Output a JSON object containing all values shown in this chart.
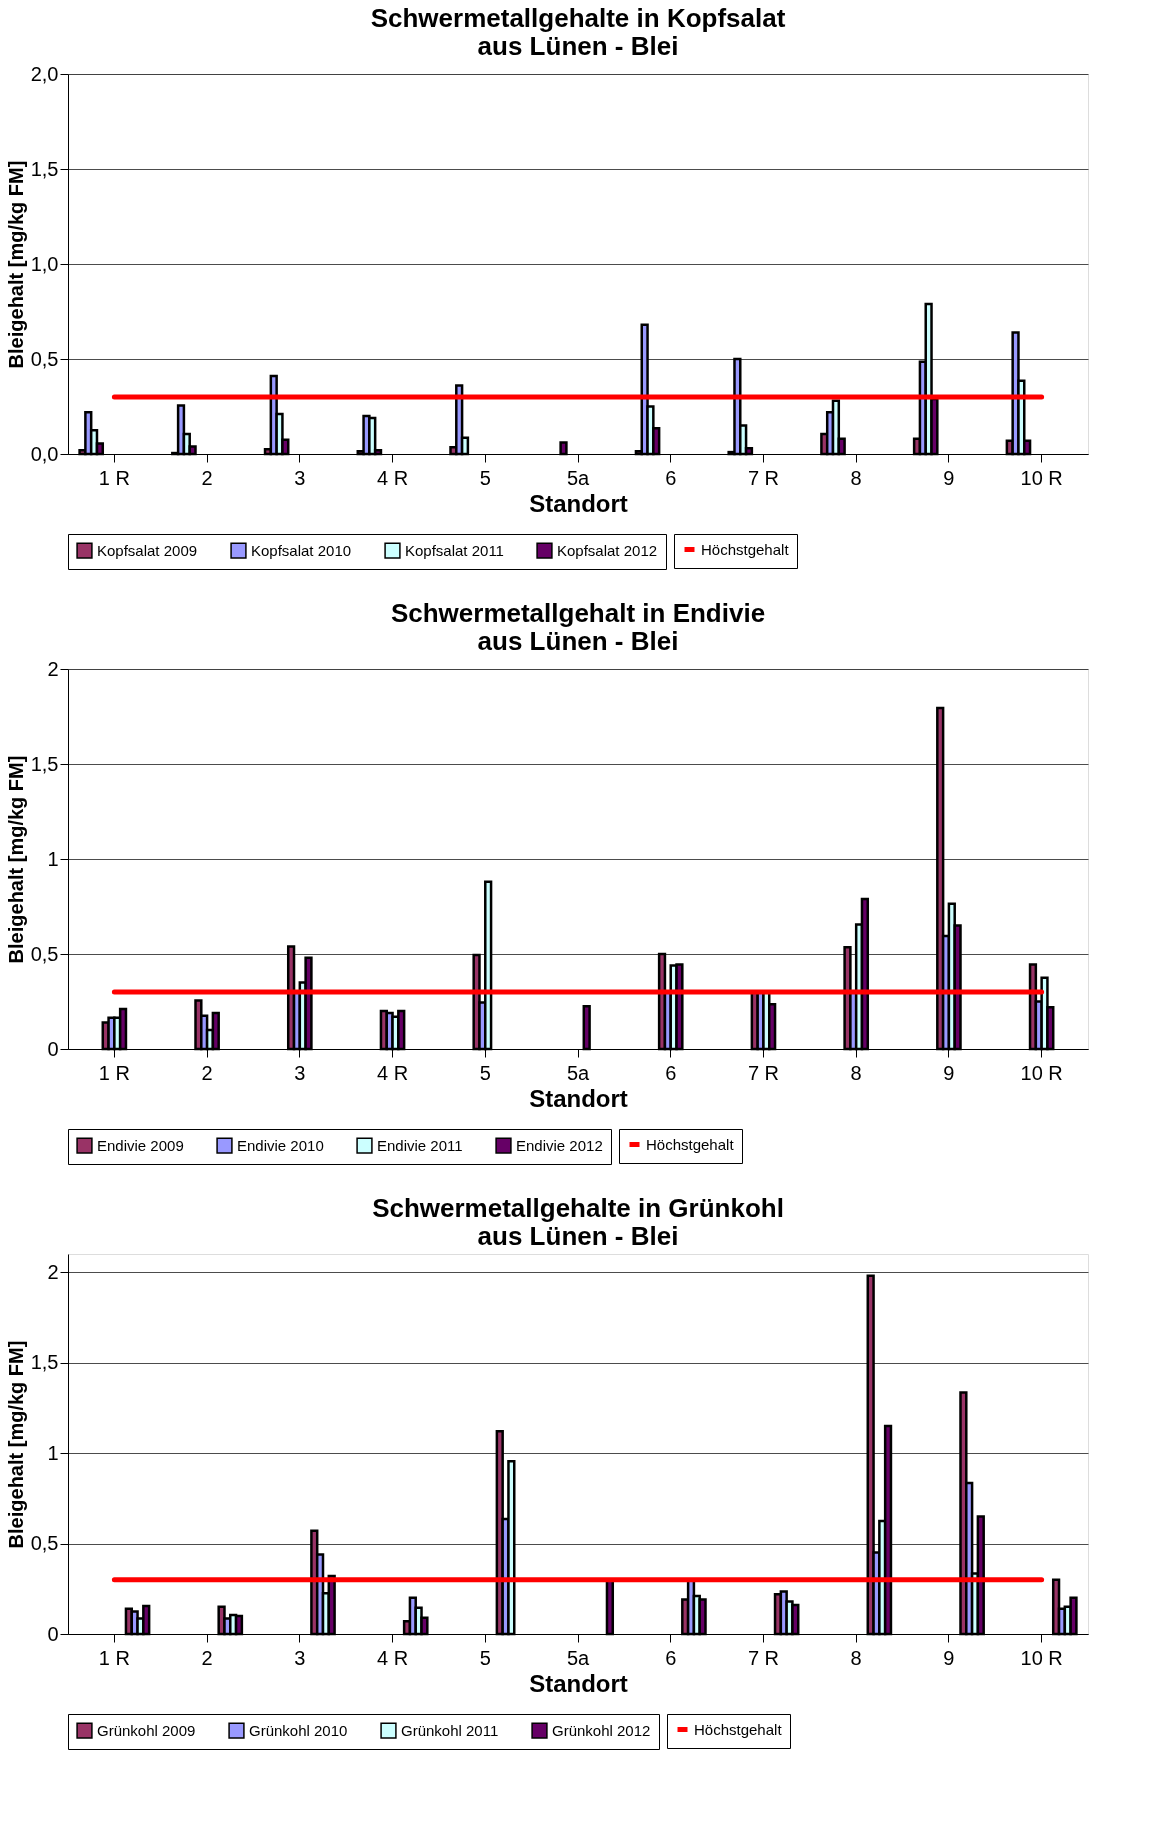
{
  "chart_data": [
    {
      "type": "bar",
      "title": [
        "Schwermetallgehalte in Kopfsalat",
        "aus Lünen - Blei"
      ],
      "xlabel": "Standort",
      "ylabel": "Bleigehalt [mg/kg FM]",
      "categories": [
        "1 R",
        "2",
        "3",
        "4 R",
        "5",
        "5a",
        "6",
        "7 R",
        "8",
        "9",
        "10 R"
      ],
      "series": [
        {
          "name": "Kopfsalat 2009",
          "color": "#993366",
          "values": [
            0.02,
            0.005,
            0.025,
            0.015,
            0.035,
            null,
            0.015,
            0.01,
            0.105,
            0.08,
            0.07
          ]
        },
        {
          "name": "Kopfsalat 2010",
          "color": "#9999ff",
          "values": [
            0.22,
            0.255,
            0.41,
            0.2,
            0.36,
            null,
            0.68,
            0.5,
            0.22,
            0.485,
            0.64
          ]
        },
        {
          "name": "Kopfsalat 2011",
          "color": "#ccffff",
          "values": [
            0.125,
            0.105,
            0.21,
            0.19,
            0.085,
            null,
            0.25,
            0.15,
            0.28,
            0.79,
            0.385
          ]
        },
        {
          "name": "Kopfsalat 2012",
          "color": "#660066",
          "values": [
            0.055,
            0.04,
            0.075,
            0.02,
            null,
            0.06,
            0.135,
            0.03,
            0.08,
            0.29,
            0.07
          ]
        }
      ],
      "ref_lines": [
        {
          "axis": "y",
          "value": 0.3,
          "label": "Höchstgehalt",
          "color": "#ff0000"
        }
      ],
      "ylim": [
        0,
        2
      ],
      "yticks": [
        {
          "value": 0,
          "label": "0,0"
        },
        {
          "value": 0.5,
          "label": "0,5"
        },
        {
          "value": 1,
          "label": "1,0"
        },
        {
          "value": 1.5,
          "label": "1,5"
        },
        {
          "value": 2,
          "label": "2,0"
        }
      ],
      "grid": "y",
      "legend": "bottom"
    },
    {
      "type": "bar",
      "title": [
        "Schwermetallgehalt  in Endivie",
        "aus Lünen - Blei"
      ],
      "xlabel": "Standort",
      "ylabel": "Bleigehalt [mg/kg FM]",
      "categories": [
        "1 R",
        "2",
        "3",
        "4 R",
        "5",
        "5a",
        "6",
        "7 R",
        "8",
        "9",
        "10 R"
      ],
      "series": [
        {
          "name": "Endivie 2009",
          "color": "#993366",
          "values": [
            0.14,
            0.255,
            0.54,
            0.2,
            0.495,
            null,
            0.5,
            0.3,
            0.535,
            1.795,
            0.445
          ]
        },
        {
          "name": "Endivie 2010",
          "color": "#9999ff",
          "values": [
            0.165,
            0.175,
            0.3,
            0.19,
            0.245,
            null,
            0.3,
            0.3,
            0.3,
            0.595,
            0.25
          ]
        },
        {
          "name": "Endivie 2011",
          "color": "#ccffff",
          "values": [
            0.165,
            0.1,
            0.35,
            0.17,
            0.88,
            null,
            0.44,
            0.3,
            0.655,
            0.765,
            0.375
          ]
        },
        {
          "name": "Endivie 2012",
          "color": "#660066",
          "values": [
            0.21,
            0.19,
            0.48,
            0.2,
            null,
            0.225,
            0.445,
            0.235,
            0.79,
            0.65,
            0.22
          ]
        }
      ],
      "ref_lines": [
        {
          "axis": "y",
          "value": 0.3,
          "label": "Höchstgehalt",
          "color": "#ff0000"
        }
      ],
      "ylim": [
        0,
        2
      ],
      "yticks": [
        0,
        {
          "value": 0.5,
          "label": "0,5"
        },
        1,
        {
          "value": 1.5,
          "label": "1,5"
        },
        2
      ],
      "grid": "y",
      "legend": "bottom"
    },
    {
      "type": "bar",
      "title": [
        "Schwermetallgehalte in Grünkohl",
        "aus Lünen - Blei"
      ],
      "xlabel": "Standort",
      "ylabel": "Bleigehalt [mg/kg FM]",
      "categories": [
        "1 R",
        "2",
        "3",
        "4 R",
        "5",
        "5a",
        "6",
        "7 R",
        "8",
        "9",
        "10 R"
      ],
      "series": [
        {
          "name": "Grünkohl 2009",
          "color": "#993366",
          "values": [
            0.14,
            0.15,
            0.57,
            0.07,
            1.12,
            null,
            0.19,
            0.22,
            1.98,
            1.335,
            0.3
          ]
        },
        {
          "name": "Grünkohl 2010",
          "color": "#9999ff",
          "values": [
            0.125,
            0.085,
            0.44,
            0.2,
            0.635,
            null,
            0.3,
            0.235,
            0.45,
            0.835,
            0.14
          ]
        },
        {
          "name": "Grünkohl 2011",
          "color": "#ccffff",
          "values": [
            0.085,
            0.105,
            0.225,
            0.145,
            0.955,
            null,
            0.21,
            0.18,
            0.625,
            0.335,
            0.15
          ]
        },
        {
          "name": "Grünkohl 2012",
          "color": "#660066",
          "values": [
            0.155,
            0.1,
            0.32,
            0.09,
            null,
            0.3,
            0.19,
            0.16,
            1.15,
            0.65,
            0.2
          ]
        }
      ],
      "ref_lines": [
        {
          "axis": "y",
          "value": 0.3,
          "label": "Höchstgehalt",
          "color": "#ff0000"
        }
      ],
      "ylim": [
        0,
        2.1
      ],
      "yticks": [
        0,
        {
          "value": 0.5,
          "label": "0,5"
        },
        1,
        {
          "value": 1.5,
          "label": "1,5"
        },
        2
      ],
      "grid": "y",
      "legend": "bottom"
    }
  ]
}
